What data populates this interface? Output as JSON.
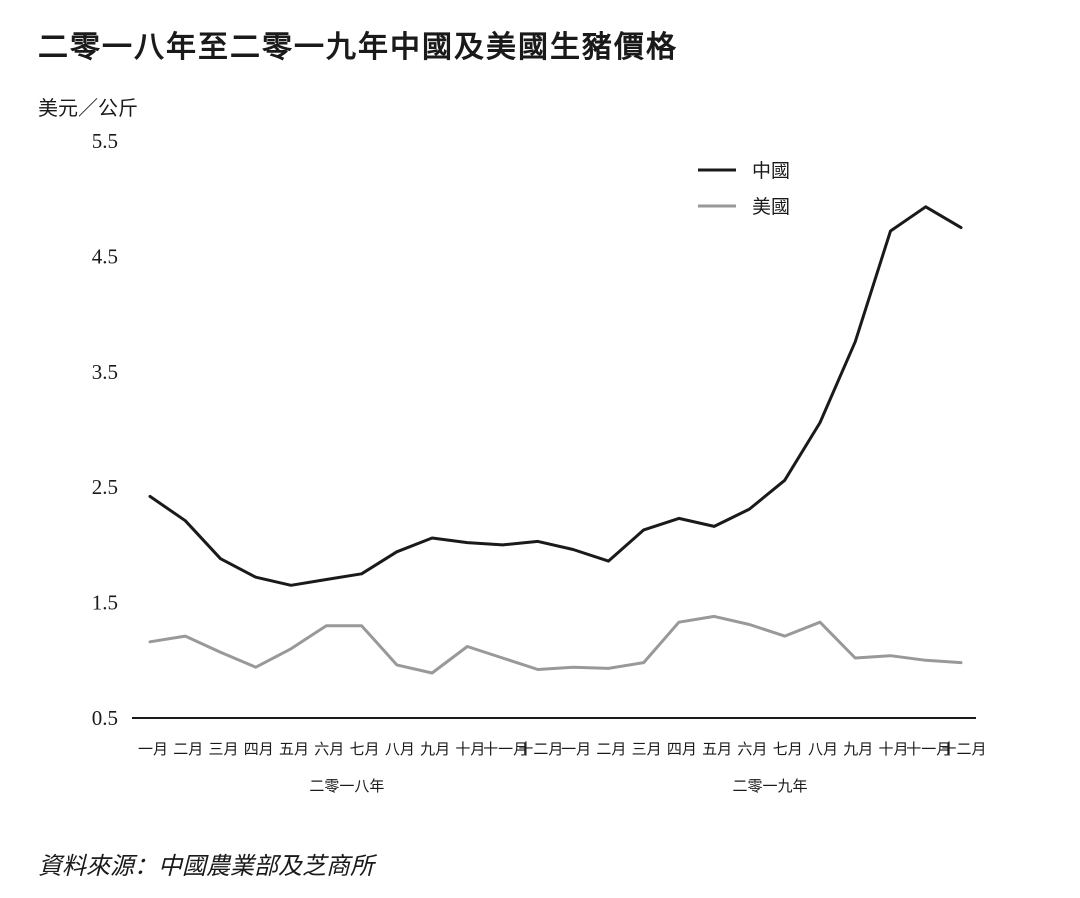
{
  "title": "二零一八年至二零一九年中國及美國生豬價格",
  "unit_label": "美元／公斤",
  "source": "資料來源：中國農業部及芝商所",
  "chart_data": {
    "type": "line",
    "ylim": [
      0.5,
      5.5
    ],
    "yticks": [
      "5.5",
      "4.5",
      "3.5",
      "2.5",
      "1.5",
      "0.5"
    ],
    "ytick_values": [
      5.5,
      4.5,
      3.5,
      2.5,
      1.5,
      0.5
    ],
    "categories": [
      "一月",
      "二月",
      "三月",
      "四月",
      "五月",
      "六月",
      "七月",
      "八月",
      "九月",
      "十月",
      "十一月",
      "十二月",
      "一月",
      "二月",
      "三月",
      "四月",
      "五月",
      "六月",
      "七月",
      "八月",
      "九月",
      "十月",
      "十一月",
      "十二月"
    ],
    "year_labels": [
      "二零一八年",
      "二零一九年"
    ],
    "grid": false,
    "legend_position": "top-right",
    "series": [
      {
        "name": "中國",
        "color": "#1a1a1a",
        "values": [
          2.42,
          2.21,
          1.88,
          1.72,
          1.65,
          1.7,
          1.75,
          1.94,
          2.06,
          2.02,
          2.0,
          2.03,
          1.96,
          1.86,
          2.13,
          2.23,
          2.16,
          2.31,
          2.56,
          3.06,
          3.76,
          4.72,
          4.93,
          4.75
        ]
      },
      {
        "name": "美國",
        "color": "#999999",
        "values": [
          1.16,
          1.21,
          1.07,
          0.94,
          1.1,
          1.3,
          1.3,
          0.96,
          0.89,
          1.12,
          1.02,
          0.92,
          0.94,
          0.93,
          0.98,
          1.33,
          1.38,
          1.31,
          1.21,
          1.33,
          1.02,
          1.04,
          1.0,
          0.98
        ]
      }
    ]
  }
}
